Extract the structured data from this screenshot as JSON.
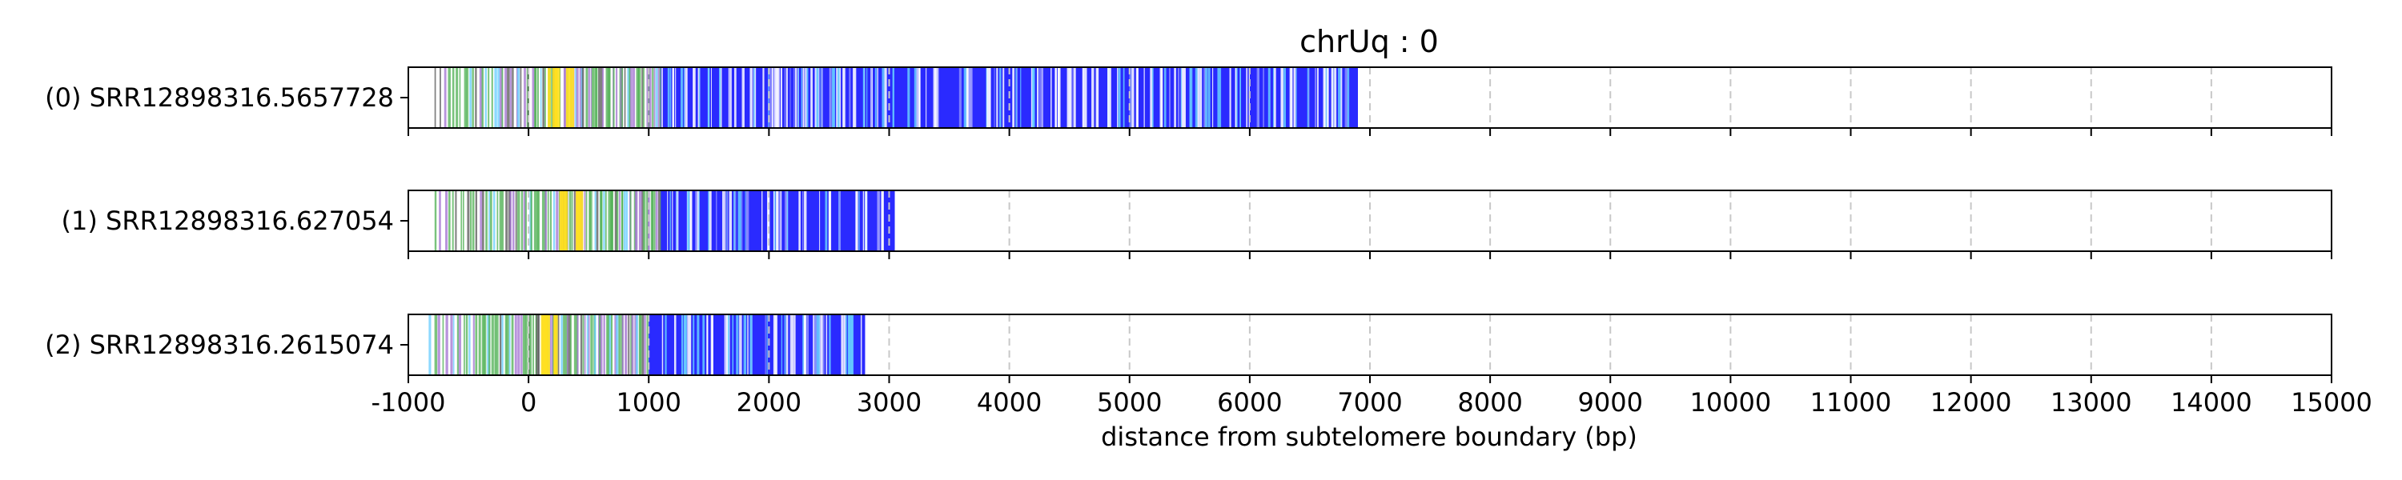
{
  "chart_data": {
    "type": "read-track",
    "title": "chrUq : 0",
    "xlabel": "distance from subtelomere boundary (bp)",
    "xlim": [
      -1000,
      15000
    ],
    "x_ticks": [
      -1000,
      0,
      1000,
      2000,
      3000,
      4000,
      5000,
      6000,
      7000,
      8000,
      9000,
      10000,
      11000,
      12000,
      13000,
      14000,
      15000
    ],
    "grid": "vertical dashed at each x tick",
    "colors": {
      "dense_repeat": "#2a2aff",
      "variant": "#66ccff",
      "green": "#4caf50",
      "purple": "#a070d0",
      "yellow": "#ffe020",
      "grid": "#c8c8c8"
    },
    "reads": [
      {
        "label": "(0) SRR12898316.5657728",
        "start": -1000,
        "end": 6900,
        "dense_region": [
          1100,
          6900
        ],
        "sparse_region": [
          -800,
          1100
        ],
        "yellow_region": [
          100,
          400
        ]
      },
      {
        "label": "(1) SRR12898316.627054",
        "start": -1000,
        "end": 3050,
        "dense_region": [
          1100,
          3050
        ],
        "sparse_region": [
          -800,
          1100
        ],
        "yellow_region": [
          250,
          450
        ]
      },
      {
        "label": "(2) SRR12898316.2615074",
        "start": -1000,
        "end": 2800,
        "dense_region": [
          1000,
          2800
        ],
        "sparse_region": [
          -850,
          1000
        ],
        "yellow_region": [
          100,
          300
        ]
      }
    ]
  }
}
